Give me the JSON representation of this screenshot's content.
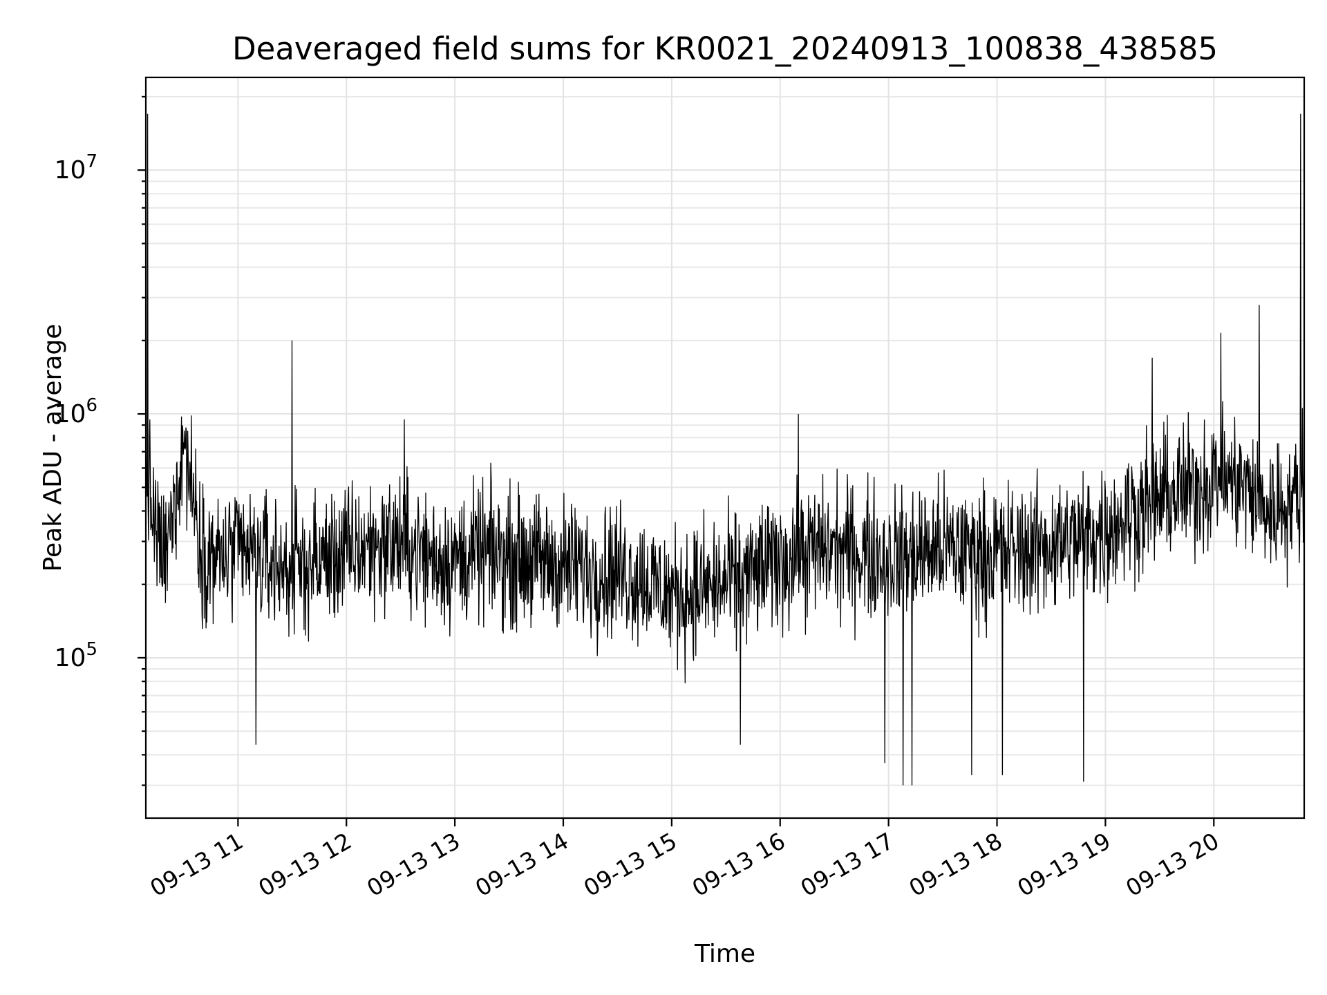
{
  "chart_data": {
    "type": "line",
    "title": "Deaveraged field sums for KR0021_20240913_100838_438585",
    "xlabel": "Time",
    "ylabel": "Peak ADU - average",
    "y_scale": "log",
    "ylim": [
      22000,
      24000000
    ],
    "xlim": [
      "2024-09-13 10:09",
      "2024-09-13 20:50"
    ],
    "x_ticks": [
      {
        "value": "2024-09-13 11:00",
        "label": "09-13 11"
      },
      {
        "value": "2024-09-13 12:00",
        "label": "09-13 12"
      },
      {
        "value": "2024-09-13 13:00",
        "label": "09-13 13"
      },
      {
        "value": "2024-09-13 14:00",
        "label": "09-13 14"
      },
      {
        "value": "2024-09-13 15:00",
        "label": "09-13 15"
      },
      {
        "value": "2024-09-13 16:00",
        "label": "09-13 16"
      },
      {
        "value": "2024-09-13 17:00",
        "label": "09-13 17"
      },
      {
        "value": "2024-09-13 18:00",
        "label": "09-13 18"
      },
      {
        "value": "2024-09-13 19:00",
        "label": "09-13 19"
      },
      {
        "value": "2024-09-13 20:00",
        "label": "09-13 20"
      }
    ],
    "y_ticks": [
      {
        "value": 100000,
        "base": "10",
        "exp": "5"
      },
      {
        "value": 1000000,
        "base": "10",
        "exp": "6"
      },
      {
        "value": 10000000,
        "base": "10",
        "exp": "7"
      }
    ],
    "grid": true,
    "series_color": "#000000",
    "x": [
      "2024-09-13 10:09",
      "2024-09-13 10:15",
      "2024-09-13 10:20",
      "2024-09-13 10:30",
      "2024-09-13 10:40",
      "2024-09-13 10:50",
      "2024-09-13 11:00",
      "2024-09-13 11:15",
      "2024-09-13 11:30",
      "2024-09-13 11:45",
      "2024-09-13 12:00",
      "2024-09-13 12:15",
      "2024-09-13 12:30",
      "2024-09-13 12:45",
      "2024-09-13 13:00",
      "2024-09-13 13:15",
      "2024-09-13 13:30",
      "2024-09-13 13:45",
      "2024-09-13 14:00",
      "2024-09-13 14:15",
      "2024-09-13 14:30",
      "2024-09-13 14:45",
      "2024-09-13 15:00",
      "2024-09-13 15:15",
      "2024-09-13 15:30",
      "2024-09-13 15:45",
      "2024-09-13 16:00",
      "2024-09-13 16:15",
      "2024-09-13 16:30",
      "2024-09-13 16:45",
      "2024-09-13 17:00",
      "2024-09-13 17:15",
      "2024-09-13 17:30",
      "2024-09-13 17:45",
      "2024-09-13 18:00",
      "2024-09-13 18:15",
      "2024-09-13 18:30",
      "2024-09-13 18:45",
      "2024-09-13 19:00",
      "2024-09-13 19:15",
      "2024-09-13 19:30",
      "2024-09-13 19:45",
      "2024-09-13 20:00",
      "2024-09-13 20:15",
      "2024-09-13 20:30",
      "2024-09-13 20:45",
      "2024-09-13 20:50"
    ],
    "y": [
      600000,
      300000,
      250000,
      800000,
      280000,
      250000,
      270000,
      250000,
      230000,
      250000,
      270000,
      290000,
      300000,
      260000,
      250000,
      270000,
      260000,
      250000,
      240000,
      230000,
      230000,
      210000,
      180000,
      190000,
      200000,
      220000,
      250000,
      270000,
      280000,
      270000,
      260000,
      270000,
      280000,
      270000,
      270000,
      280000,
      290000,
      310000,
      330000,
      400000,
      450000,
      480000,
      550000,
      520000,
      400000,
      450000,
      550000
    ],
    "y_spread_factor": [
      3,
      3,
      3,
      3,
      3,
      3,
      3,
      3,
      3,
      3,
      3,
      3,
      3,
      3,
      3,
      3,
      3,
      3,
      3,
      3,
      3,
      3,
      3,
      3,
      3,
      3,
      3,
      3,
      3,
      3,
      3,
      3,
      3,
      3,
      3,
      3,
      3,
      3,
      3,
      3,
      3,
      3,
      3,
      3,
      3,
      3,
      3
    ],
    "spikes": [
      {
        "x": "2024-09-13 10:10",
        "y": 17000000
      },
      {
        "x": "2024-09-13 11:30",
        "y": 2000000
      },
      {
        "x": "2024-09-13 12:32",
        "y": 950000
      },
      {
        "x": "2024-09-13 16:10",
        "y": 1000000
      },
      {
        "x": "2024-09-13 19:26",
        "y": 1700000
      },
      {
        "x": "2024-09-13 20:04",
        "y": 2150000
      },
      {
        "x": "2024-09-13 20:25",
        "y": 2800000
      },
      {
        "x": "2024-09-13 20:48",
        "y": 17000000
      }
    ],
    "dips": [
      {
        "x": "2024-09-13 11:10",
        "y": 44000
      },
      {
        "x": "2024-09-13 15:38",
        "y": 44000
      },
      {
        "x": "2024-09-13 16:58",
        "y": 37000
      },
      {
        "x": "2024-09-13 17:08",
        "y": 30000
      },
      {
        "x": "2024-09-13 17:13",
        "y": 30000
      },
      {
        "x": "2024-09-13 17:46",
        "y": 33000
      },
      {
        "x": "2024-09-13 18:03",
        "y": 33000
      },
      {
        "x": "2024-09-13 18:48",
        "y": 31000
      }
    ]
  }
}
